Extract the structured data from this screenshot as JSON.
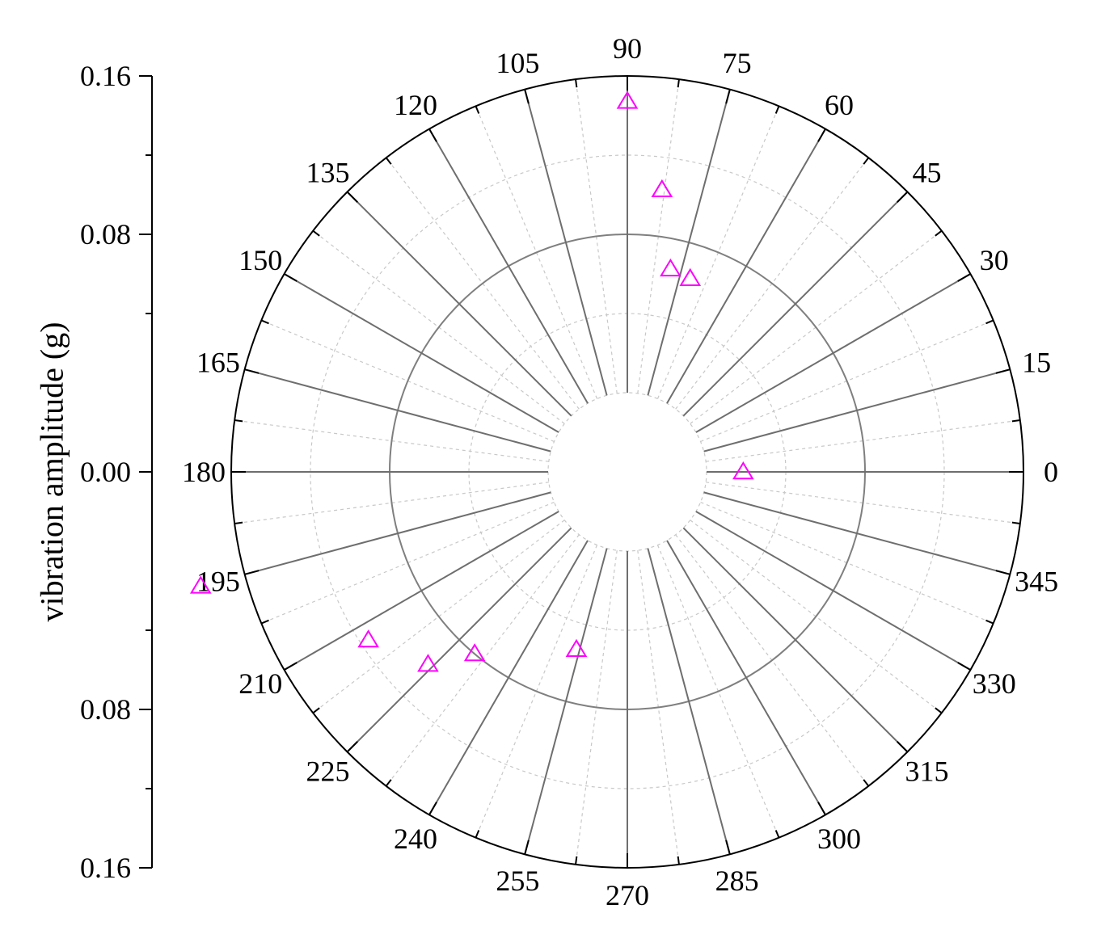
{
  "chart_data": {
    "type": "scatter",
    "subtype": "polar",
    "title": "",
    "ylabel": "vibration amplitude (g)",
    "y_axis_ticks": [
      "0.16",
      "0.08",
      "0.00",
      "0.08",
      "0.16"
    ],
    "angle_ticks": [
      0,
      15,
      30,
      45,
      60,
      75,
      90,
      105,
      120,
      135,
      150,
      165,
      180,
      195,
      210,
      225,
      240,
      255,
      270,
      285,
      300,
      315,
      330,
      345
    ],
    "radial_range": [
      0,
      0.16
    ],
    "radial_gridlines": [
      0.08,
      0.16
    ],
    "radial_minor_gridlines": [
      0.04,
      0.12
    ],
    "inner_hole": true,
    "grid": true,
    "marker": "open-triangle",
    "marker_color": "#ff00ff",
    "series": [
      {
        "theta": [
          0,
          72,
          78,
          83,
          90,
          195,
          213,
          224,
          230,
          254
        ],
        "r": [
          0.0185,
          0.0627,
          0.0648,
          0.1036,
          0.1472,
          0.183,
          0.1159,
          0.0999,
          0.0799,
          0.0533
        ]
      }
    ]
  }
}
